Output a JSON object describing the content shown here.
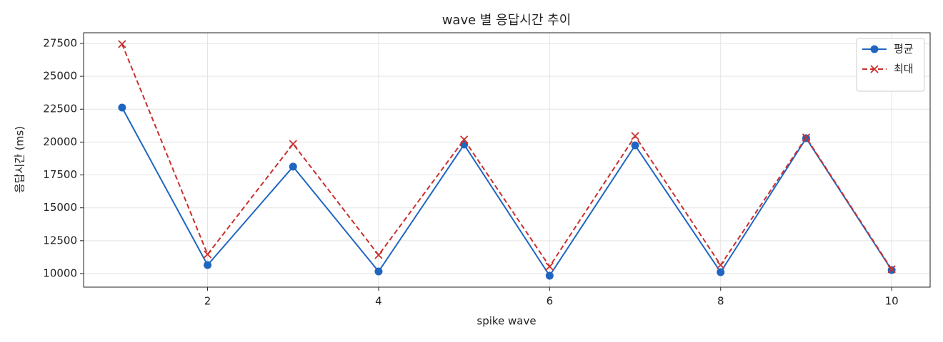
{
  "chart_data": {
    "type": "line",
    "title": "wave 별 응답시간 추이",
    "xlabel": "spike wave",
    "ylabel": "응답시간 (ms)",
    "x": [
      1,
      2,
      3,
      4,
      5,
      6,
      7,
      8,
      9,
      10
    ],
    "series": [
      {
        "name": "평균",
        "color": "#1f66c1",
        "linestyle": "solid",
        "marker": "o",
        "values": [
          22620,
          10650,
          18130,
          10160,
          19810,
          9840,
          19750,
          10110,
          20290,
          10270
        ]
      },
      {
        "name": "최대",
        "color": "#c8302e",
        "linestyle": "dashed",
        "marker": "x",
        "values": [
          27450,
          11460,
          19860,
          11410,
          20190,
          10540,
          20460,
          10650,
          20350,
          10330
        ]
      }
    ],
    "xlim": [
      0.55,
      10.45
    ],
    "xticks": [
      2,
      4,
      6,
      8,
      10
    ],
    "ylim": [
      8970,
      28310
    ],
    "yticks": [
      10000,
      12500,
      15000,
      17500,
      20000,
      22500,
      25000,
      27500
    ],
    "grid": true,
    "legend": "upper right"
  }
}
